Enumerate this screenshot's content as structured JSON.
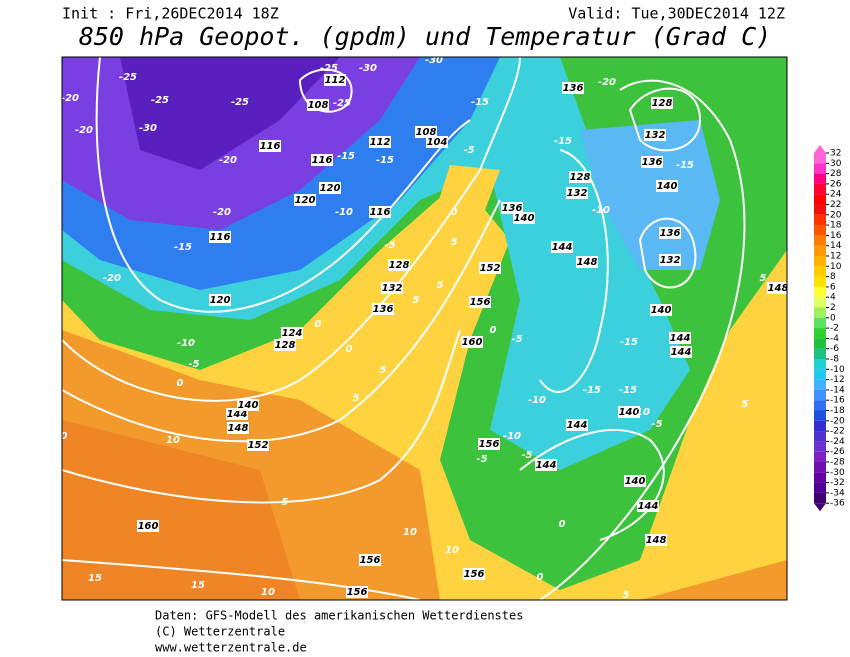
{
  "header": {
    "init": "Init : Fri,26DEC2014 18Z",
    "valid": "Valid: Tue,30DEC2014 12Z",
    "title": "850 hPa Geopot. (gpdm) und Temperatur (Grad C)"
  },
  "colorbar": {
    "levels": [
      32,
      30,
      28,
      26,
      24,
      22,
      20,
      18,
      16,
      14,
      12,
      10,
      8,
      6,
      4,
      2,
      0,
      -2,
      -4,
      -6,
      -8,
      -10,
      -12,
      -14,
      -16,
      -18,
      -20,
      -22,
      -24,
      -26,
      -28,
      -30,
      -32,
      -34,
      -36
    ]
  },
  "map_labels": [
    "-25",
    "-25",
    "-25",
    "-30",
    "-20",
    "-20",
    "-15",
    "-20",
    "116",
    "120",
    "116",
    "120",
    "120",
    "116",
    "-15",
    "112",
    "108",
    "-25",
    "112",
    "-15",
    "116",
    "-10",
    "104",
    "108",
    "-15",
    "136",
    "-20",
    "128",
    "132",
    "136",
    "140",
    "-15",
    "-15",
    "128",
    "132",
    "-10",
    "144",
    "148",
    "136",
    "132",
    "140",
    "144",
    "144",
    "-15",
    "-15",
    "-15",
    "140",
    "-10",
    "144",
    "156",
    "-5",
    "-10",
    "-5",
    "144",
    "140",
    "144",
    "148",
    "0",
    "0",
    "5",
    "156",
    "10",
    "156",
    "156",
    "10",
    "5",
    "160",
    "15",
    "15",
    "10",
    "152",
    "148",
    "144",
    "140",
    "10",
    "0",
    "0",
    "-5",
    "-10",
    "124",
    "128",
    "0",
    "132",
    "136",
    "128",
    "160",
    "-5",
    "0",
    "156",
    "152",
    "140",
    "136",
    "5",
    "5",
    "0",
    "5",
    "5",
    "-5",
    "0",
    "5",
    "-5",
    "-20",
    "-20",
    "5",
    "148",
    "5",
    "-5",
    "10",
    "-25",
    "-30",
    "-30"
  ],
  "footer": {
    "line1": "Daten: GFS-Modell des amerikanischen Wetterdienstes",
    "line2": "(C) Wetterzentrale",
    "line3": "www.wetterzentrale.de"
  }
}
